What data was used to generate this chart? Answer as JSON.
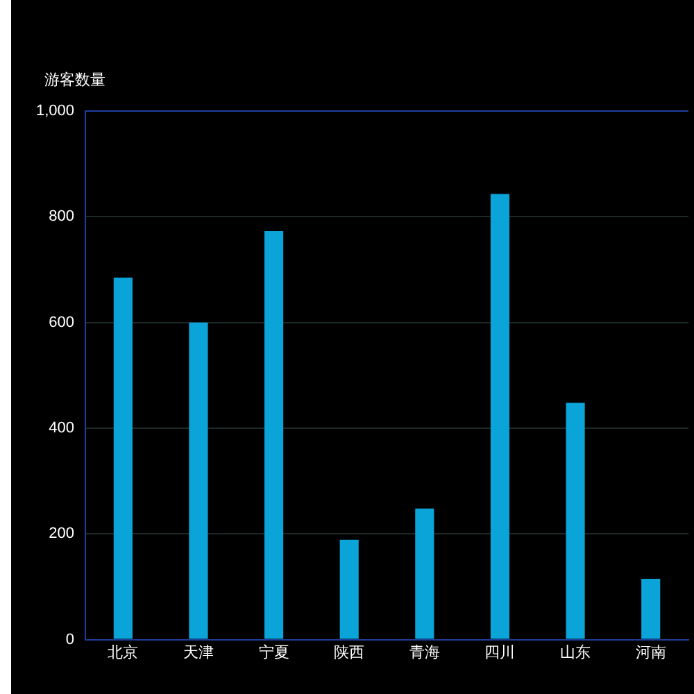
{
  "chart_data": {
    "type": "bar",
    "ylabel": "游客数量",
    "categories": [
      "北京",
      "天津",
      "宁夏",
      "陕西",
      "青海",
      "四川",
      "山东",
      "河南"
    ],
    "series": [
      {
        "color": "#0aa4d8",
        "values": [
          685,
          600,
          773,
          189,
          248,
          843,
          448,
          115
        ]
      }
    ],
    "ylim": [
      0,
      1000
    ],
    "yticks": [
      0,
      200,
      400,
      600,
      800,
      {
        "value": 1000,
        "label": "1,000"
      }
    ],
    "grid": "y",
    "legend": false
  }
}
